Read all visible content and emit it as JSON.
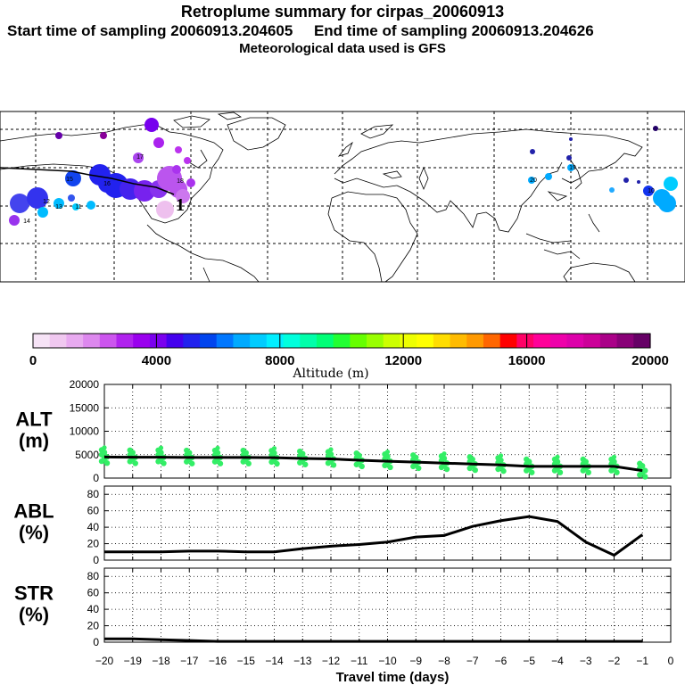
{
  "header": {
    "title": "Retroplume summary for cirpas_20060913",
    "sampling": "Start time of sampling 20060913.204605     End time of sampling 20060913.204626",
    "met": "Meteorological data used is GFS"
  },
  "map": {
    "release_marker": "1",
    "plume_labels": [
      "15",
      "16",
      "17",
      "18",
      "19",
      "20",
      "12",
      "13",
      "14",
      "11",
      "10"
    ]
  },
  "colorbar": {
    "label": "Altitude (m)",
    "ticks": [
      "0",
      "4000",
      "8000",
      "12000",
      "16000",
      "20000"
    ],
    "colors": [
      "#f6e3f6",
      "#f0c8f0",
      "#e8aaf0",
      "#dd88ee",
      "#cc55ee",
      "#b022ee",
      "#9a00ee",
      "#7a00ee",
      "#4400ee",
      "#2222ee",
      "#0044ee",
      "#0077ff",
      "#00aaff",
      "#00ccff",
      "#00eeff",
      "#00ffdd",
      "#00ffaa",
      "#00ff77",
      "#22ff33",
      "#66ff00",
      "#99ff00",
      "#ccff00",
      "#eeff00",
      "#ffff00",
      "#ffdd00",
      "#ffbb00",
      "#ff9900",
      "#ff6600",
      "#ff0000",
      "#ff0066",
      "#ff0099",
      "#ee00aa",
      "#dd00aa",
      "#cc0099",
      "#aa0088",
      "#880077",
      "#660066"
    ]
  },
  "chart_data": [
    {
      "type": "line",
      "panel_label": [
        "ALT",
        "(m)"
      ],
      "ylim": [
        0,
        20000
      ],
      "yticks": [
        "0",
        "5000",
        "10000",
        "15000",
        "20000"
      ],
      "x": [
        -20,
        -19,
        -18,
        -17,
        -16,
        -15,
        -14,
        -13,
        -12,
        -11,
        -10,
        -9,
        -8,
        -7,
        -6,
        -5,
        -4,
        -3,
        -2,
        -1
      ],
      "values": [
        4500,
        4450,
        4450,
        4400,
        4400,
        4400,
        4350,
        4200,
        4100,
        3800,
        3600,
        3400,
        3200,
        3000,
        2800,
        2500,
        2500,
        2500,
        2500,
        1600
      ]
    },
    {
      "type": "line",
      "panel_label": [
        "ABL",
        "(%)"
      ],
      "ylim": [
        0,
        90
      ],
      "yticks": [
        "0",
        "20",
        "40",
        "60",
        "80"
      ],
      "x": [
        -20,
        -19,
        -18,
        -17,
        -16,
        -15,
        -14,
        -13,
        -12,
        -11,
        -10,
        -9,
        -8,
        -7,
        -6,
        -5,
        -4,
        -3,
        -2,
        -1
      ],
      "values": [
        10,
        10,
        10,
        11,
        11,
        10,
        10,
        14,
        17,
        19,
        22,
        28,
        30,
        41,
        48,
        53,
        47,
        22,
        6,
        31
      ]
    },
    {
      "type": "line",
      "panel_label": [
        "STR",
        "(%)"
      ],
      "ylim": [
        0,
        90
      ],
      "yticks": [
        "0",
        "20",
        "40",
        "60",
        "80"
      ],
      "x": [
        -20,
        -19,
        -18,
        -17,
        -16,
        -15,
        -14,
        -13,
        -12,
        -11,
        -10,
        -9,
        -8,
        -7,
        -6,
        -5,
        -4,
        -3,
        -2,
        -1
      ],
      "values": [
        4,
        4,
        3,
        2,
        1,
        1,
        1,
        1,
        1,
        1,
        1,
        1,
        1,
        1,
        1,
        1,
        1,
        1,
        1,
        1
      ]
    }
  ],
  "xaxis": {
    "xlabel": "Travel time (days)",
    "xlim": [
      -20,
      0
    ],
    "ticks": [
      "−20",
      "−19",
      "−18",
      "−17",
      "−16",
      "−15",
      "−14",
      "−13",
      "−12",
      "−11",
      "−10",
      "−9",
      "−8",
      "−7",
      "−6",
      "−5",
      "−4",
      "−3",
      "−2",
      "−1",
      "0"
    ]
  }
}
